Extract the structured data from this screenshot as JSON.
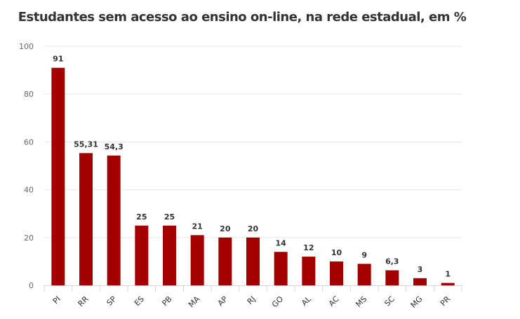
{
  "chart_data": {
    "type": "bar",
    "title": "Estudantes sem acesso ao ensino on-line, na rede estadual, em %",
    "categories": [
      "PI",
      "RR",
      "SP",
      "ES",
      "PB",
      "MA",
      "AP",
      "RJ",
      "GO",
      "AL",
      "AC",
      "MS",
      "SC",
      "MG",
      "PR"
    ],
    "values": [
      91,
      55.31,
      54.3,
      25,
      25,
      21,
      20,
      20,
      14,
      12,
      10,
      9,
      6.3,
      3,
      1
    ],
    "data_labels": [
      "91",
      "55,31",
      "54,3",
      "25",
      "25",
      "21",
      "20",
      "20",
      "14",
      "12",
      "10",
      "9",
      "6,3",
      "3",
      "1"
    ],
    "ylim": [
      0,
      100
    ],
    "yticks": [
      "0",
      "20",
      "40",
      "60",
      "80",
      "100"
    ],
    "grid": true,
    "bar_color": "#a50000",
    "xlabel": "",
    "ylabel": ""
  }
}
